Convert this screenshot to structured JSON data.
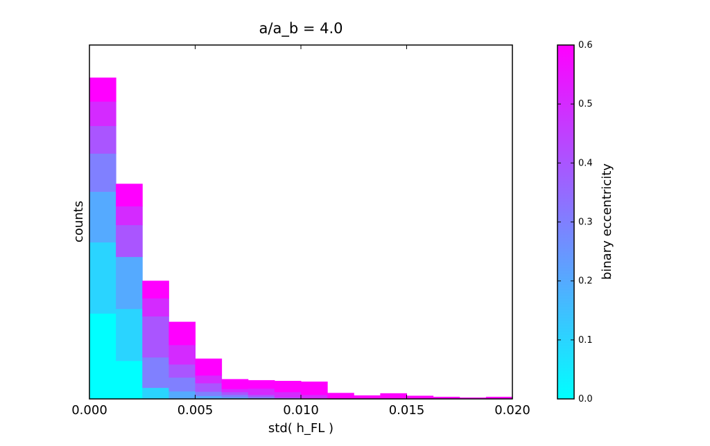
{
  "chart_data": {
    "type": "bar",
    "subtype": "stacked-histogram",
    "title": "a/a_b = 4.0",
    "xlabel": "std( h_FL )",
    "ylabel": "counts",
    "xlim": [
      0.0,
      0.02
    ],
    "ylim": [
      0,
      100
    ],
    "y_tick_labels_shown": false,
    "xticks": [
      0.0,
      0.005,
      0.01,
      0.015,
      0.02
    ],
    "xtick_labels": [
      "0.000",
      "0.005",
      "0.010",
      "0.015",
      "0.020"
    ],
    "bin_edges": [
      0.0,
      0.00125,
      0.0025,
      0.00375,
      0.005,
      0.00625,
      0.0075,
      0.00875,
      0.01,
      0.01125,
      0.0125,
      0.01375,
      0.015,
      0.01625,
      0.0175,
      0.01875,
      0.02
    ],
    "grid": false,
    "legend": "none",
    "colorbar": {
      "label": "binary eccentricity",
      "vmin": 0.0,
      "vmax": 0.6,
      "ticks": [
        0.0,
        0.1,
        0.2,
        0.3,
        0.4,
        0.5,
        0.6
      ],
      "tick_labels": [
        "0.0",
        "0.1",
        "0.2",
        "0.3",
        "0.4",
        "0.5",
        "0.6"
      ],
      "colormap": "cool",
      "color_min": "#00ffff",
      "color_max": "#ff00ff"
    },
    "series": [
      {
        "eccentricity": 0.0,
        "color": "#00ffff",
        "values": [
          24.2,
          10.8,
          0.0,
          0.0,
          0.0,
          0.0,
          0.0,
          0.0,
          0.0,
          0.0,
          0.0,
          0.0,
          0.0,
          0.0,
          0.0,
          0.0
        ]
      },
      {
        "eccentricity": 0.1,
        "color": "#2ad4ff",
        "values": [
          20.1,
          14.7,
          3.2,
          0.0,
          0.0,
          0.0,
          0.0,
          0.0,
          0.0,
          0.0,
          0.0,
          0.0,
          0.0,
          0.0,
          0.0,
          0.0
        ]
      },
      {
        "eccentricity": 0.2,
        "color": "#55aaff",
        "values": [
          14.3,
          14.7,
          0.0,
          2.2,
          0.9,
          0.5,
          0.0,
          0.0,
          0.0,
          0.0,
          0.0,
          0.0,
          0.0,
          0.0,
          0.0,
          0.0
        ]
      },
      {
        "eccentricity": 0.3,
        "color": "#8080ff",
        "values": [
          10.8,
          0.0,
          8.6,
          3.9,
          1.2,
          0.7,
          0.6,
          0.0,
          0.0,
          0.0,
          0.0,
          0.0,
          0.0,
          0.0,
          0.0,
          0.0
        ]
      },
      {
        "eccentricity": 0.4,
        "color": "#aa55ff",
        "values": [
          7.8,
          9.0,
          11.6,
          3.7,
          2.4,
          0.8,
          0.6,
          0.5,
          0.0,
          0.0,
          0.0,
          0.0,
          0.0,
          0.0,
          0.0,
          0.0
        ]
      },
      {
        "eccentricity": 0.5,
        "color": "#d42aff",
        "values": [
          6.9,
          5.3,
          5.1,
          5.5,
          2.2,
          0.9,
          1.8,
          1.5,
          1.2,
          0.0,
          0.0,
          0.0,
          0.0,
          0.0,
          0.0,
          0.0
        ]
      },
      {
        "eccentricity": 0.6,
        "color": "#ff00ff",
        "values": [
          6.7,
          6.3,
          4.9,
          6.5,
          4.7,
          2.7,
          2.3,
          3.1,
          3.7,
          1.7,
          1.0,
          1.6,
          0.9,
          0.6,
          0.4,
          0.6
        ]
      }
    ]
  }
}
